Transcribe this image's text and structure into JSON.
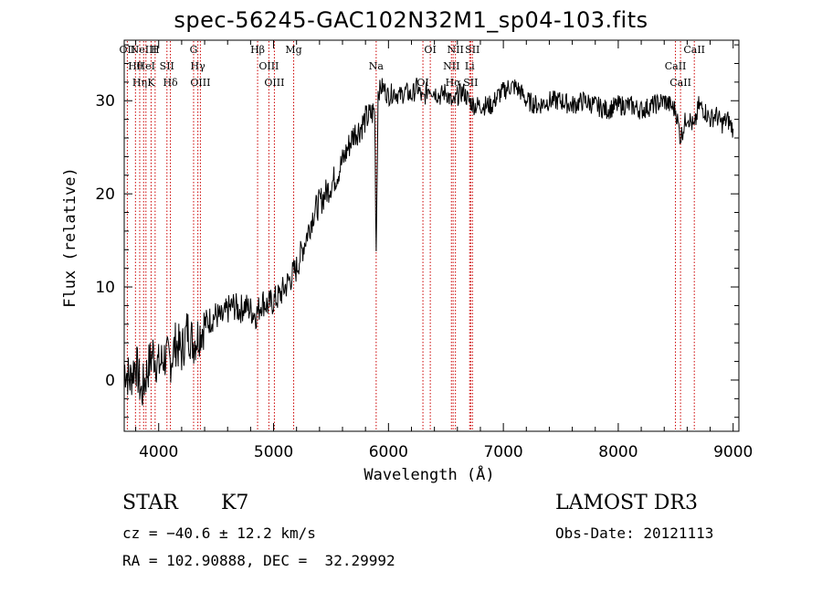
{
  "header": {
    "title": "spec-56245-GAC102N32M1_sp04-103.fits"
  },
  "info": {
    "object_class": "STAR",
    "subclass": "K7",
    "survey": "LAMOST DR3",
    "cz": "cz = −40.6 ± 12.2 km/s",
    "obs_date": "Obs-Date: 20121113",
    "radec": "RA = 102.90888, DEC =  32.29992"
  },
  "colors": {
    "spectrum": "#000000",
    "line_marker": "#cc0000",
    "axes": "#000000"
  },
  "chart_data": {
    "type": "line",
    "title": "spec-56245-GAC102N32M1_sp04-103.fits",
    "xlabel": "Wavelength (Å)",
    "ylabel": "Flux (relative)",
    "xlim": [
      3700,
      9050
    ],
    "ylim": [
      -5.5,
      36.5
    ],
    "xticks": [
      4000,
      5000,
      6000,
      7000,
      8000,
      9000
    ],
    "yticks": [
      0,
      10,
      20,
      30
    ],
    "grid": false,
    "series": [
      {
        "x": [
          3700,
          3750,
          3800,
          3850,
          3900,
          3950,
          4000,
          4050,
          4100,
          4150,
          4200,
          4250,
          4300,
          4350,
          4400,
          4450,
          4500,
          4550,
          4600,
          4650,
          4700,
          4750,
          4800,
          4850,
          4900,
          4950,
          5000,
          5050,
          5100,
          5150,
          5200,
          5250,
          5300,
          5350,
          5400,
          5450,
          5500,
          5550,
          5600,
          5650,
          5700,
          5750,
          5800,
          5850,
          5880,
          5893,
          5910,
          5950,
          6000,
          6050,
          6100,
          6150,
          6200,
          6250,
          6300,
          6350,
          6400,
          6450,
          6500,
          6563,
          6600,
          6650,
          6700,
          6750,
          6800,
          6850,
          6900,
          6950,
          7000,
          7050,
          7100,
          7150,
          7200,
          7300,
          7400,
          7500,
          7600,
          7700,
          7800,
          7900,
          8000,
          8100,
          8200,
          8300,
          8400,
          8450,
          8500,
          8542,
          8600,
          8662,
          8700,
          8750,
          8800,
          8850,
          8900,
          8950,
          9000
        ],
        "y": [
          1.5,
          0.0,
          2.0,
          -1.5,
          1.0,
          3.0,
          1.5,
          2.5,
          2.0,
          4.0,
          3.0,
          5.5,
          4.0,
          5.0,
          6.0,
          6.5,
          7.0,
          6.5,
          7.5,
          8.0,
          7.5,
          8.0,
          7.5,
          7.0,
          8.5,
          8.0,
          8.5,
          9.0,
          10.0,
          11.0,
          12.0,
          14.0,
          16.0,
          18.0,
          19.0,
          20.0,
          21.0,
          22.0,
          23.5,
          25.0,
          26.5,
          27.0,
          28.0,
          28.5,
          29.0,
          14.0,
          31.0,
          31.5,
          30.5,
          31.0,
          30.5,
          31.0,
          30.5,
          31.5,
          30.0,
          31.5,
          31.0,
          30.5,
          31.0,
          29.5,
          30.5,
          31.0,
          30.0,
          29.5,
          29.5,
          29.5,
          29.5,
          30.5,
          31.0,
          31.5,
          31.5,
          31.0,
          30.0,
          29.5,
          30.0,
          30.0,
          29.5,
          30.0,
          29.5,
          29.0,
          29.5,
          29.5,
          29.0,
          29.5,
          30.0,
          29.5,
          29.0,
          26.0,
          28.5,
          27.0,
          29.5,
          29.0,
          28.0,
          28.5,
          27.5,
          28.0,
          27.0
        ]
      }
    ],
    "line_markers": [
      {
        "wave": 3727,
        "label": "OII"
      },
      {
        "wave": 3798,
        "label": "Hθ"
      },
      {
        "wave": 3835,
        "label": "Hη"
      },
      {
        "wave": 3869,
        "label": "NeIII"
      },
      {
        "wave": 3889,
        "label": "HeI"
      },
      {
        "wave": 3934,
        "label": "K"
      },
      {
        "wave": 3969,
        "label": "H"
      },
      {
        "wave": 4072,
        "label": "SII"
      },
      {
        "wave": 4102,
        "label": "Hδ"
      },
      {
        "wave": 4304,
        "label": "G"
      },
      {
        "wave": 4341,
        "label": "Hγ"
      },
      {
        "wave": 4363,
        "label": "OIII"
      },
      {
        "wave": 4861,
        "label": "Hβ"
      },
      {
        "wave": 4959,
        "label": "OIII"
      },
      {
        "wave": 5007,
        "label": "OIII"
      },
      {
        "wave": 5175,
        "label": "Mg"
      },
      {
        "wave": 5893,
        "label": "Na"
      },
      {
        "wave": 6300,
        "label": "OI"
      },
      {
        "wave": 6364,
        "label": "OI"
      },
      {
        "wave": 6548,
        "label": "NII"
      },
      {
        "wave": 6563,
        "label": "Hα"
      },
      {
        "wave": 6583,
        "label": "NII"
      },
      {
        "wave": 6707,
        "label": "Li"
      },
      {
        "wave": 6716,
        "label": "SII"
      },
      {
        "wave": 6731,
        "label": "SII"
      },
      {
        "wave": 8498,
        "label": "CaII"
      },
      {
        "wave": 8542,
        "label": "CaII"
      },
      {
        "wave": 8662,
        "label": "CaII"
      }
    ]
  }
}
